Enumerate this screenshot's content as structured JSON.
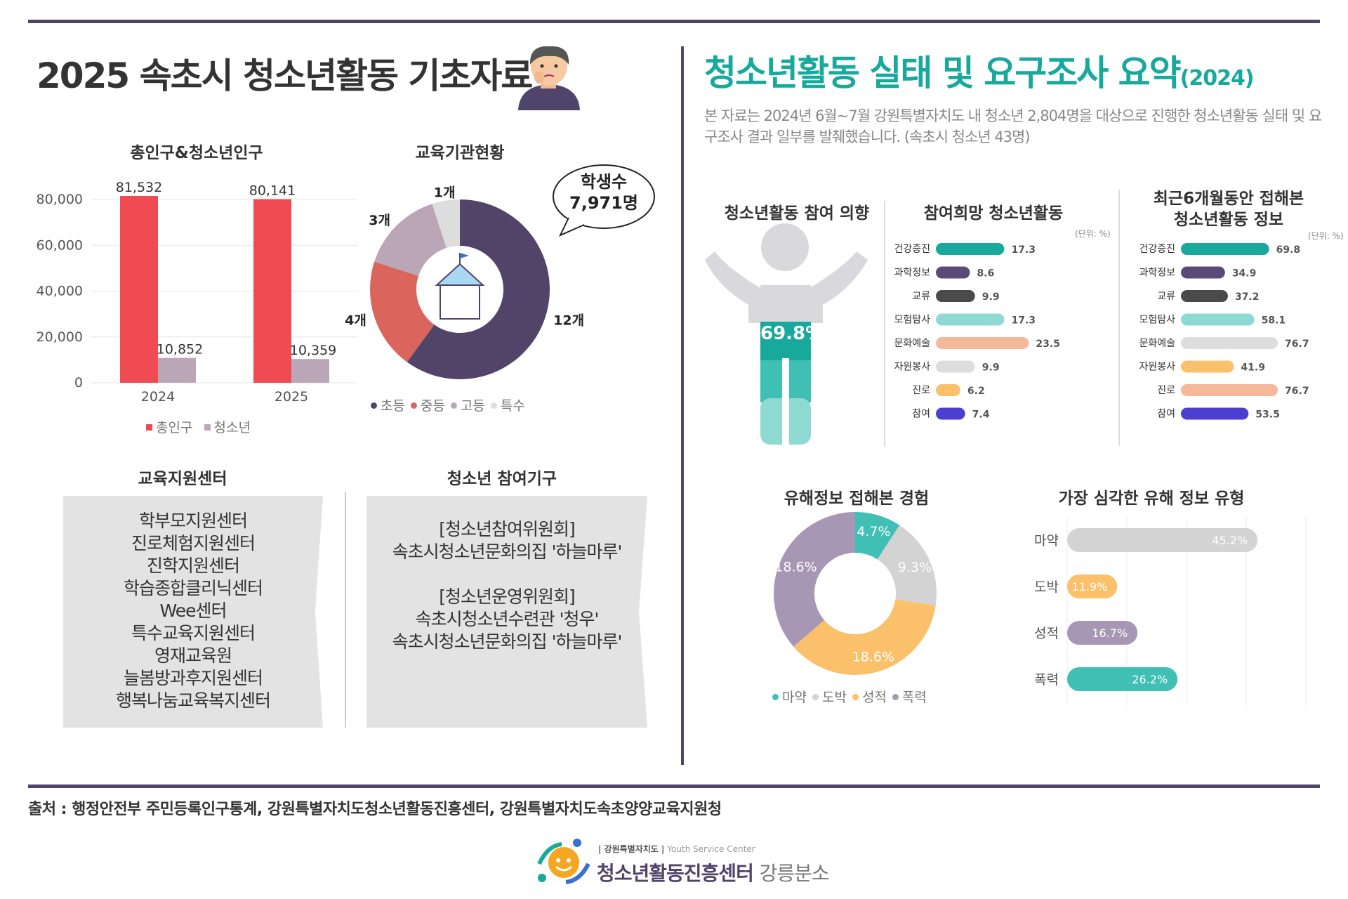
{
  "left_title": "2025 속초시 청소년활동 기초자료",
  "right_title": "청소년활동 실태 및 요구조사 요약",
  "right_title_suffix": "(2024)",
  "intro": "본 자료는 2024년 6월~7월 강원특별자치도 내 청소년 2,804명을 대상으로 진행한 청소년활동 실태 및 요구조사 결과 일부를 발췌했습니다. (속초시 청소년 43명)",
  "sections": {
    "population": "총인구&청소년인구",
    "schools": "교육기관현황",
    "support": "교육지원센터",
    "participation": "청소년 참여기구",
    "intention": "청소년활동 참여 의향",
    "desired": "참여희망 청소년활동",
    "recent_info": "최근6개월동안 접해본\n청소년활동 정보",
    "harmful_exp": "유해정보 접해본 경험",
    "harmful_type": "가장 심각한 유해 정보 유형"
  },
  "unit_label": "(단위: %)",
  "students_bubble": {
    "line1": "학생수",
    "line2": "7,971명"
  },
  "intention_value": "69.8%",
  "support_centers": [
    "학부모지원센터",
    "진로체험지원센터",
    "진학지원센터",
    "학습종합클리닉센터",
    "Wee센터",
    "특수교육지원센터",
    "영재교육원",
    "늘봄방과후지원센터",
    "행복나눔교육복지센터"
  ],
  "participation_bodies": [
    "[청소년참여위원회]",
    "속초시청소년문화의집 '하늘마루'",
    "",
    "[청소년운영위원회]",
    "속초시청소년수련관 '청우'",
    "속초시청소년문화의집 '하늘마루'"
  ],
  "source": "출처 :  행정안전부 주민등록인구통계, 강원특별자치도청소년활동진흥센터, 강원특별자치도속초양양교육지원청",
  "logo": {
    "small": "| 강원특별자치도 |",
    "small_en": "Youth Service Center",
    "name": "청소년활동진흥센터",
    "branch": "강릉분소"
  },
  "colors": {
    "accent": "#16a99c",
    "dark": "#4f4469",
    "red": "#f04a53",
    "mauve": "#bba6b8"
  },
  "chart_data": [
    {
      "type": "bar",
      "title": "총인구&청소년인구",
      "categories": [
        "2024",
        "2025"
      ],
      "series": [
        {
          "name": "총인구",
          "values": [
            81532,
            80141
          ],
          "labels": [
            "81,532",
            "80,141"
          ],
          "color": "#f04a53"
        },
        {
          "name": "청소년",
          "values": [
            10852,
            10359
          ],
          "labels": [
            "10,852",
            "10,359"
          ],
          "color": "#bba6b8"
        }
      ],
      "ylim": [
        0,
        80000
      ],
      "yticks": [
        "0",
        "20,000",
        "40,000",
        "60,000",
        "80,000"
      ],
      "legend": "bottom"
    },
    {
      "type": "pie",
      "title": "교육기관현황",
      "labels": [
        "초등",
        "중등",
        "고등",
        "특수"
      ],
      "values": [
        12,
        4,
        3,
        1
      ],
      "value_labels": [
        "12개",
        "4개",
        "3개",
        "1개"
      ],
      "colors": [
        "#524469",
        "#d9655c",
        "#bba6b8",
        "#dddddd"
      ],
      "legend": "bottom"
    },
    {
      "type": "bar",
      "title": "참여희망 청소년활동",
      "categories": [
        "건강증진",
        "과학정보",
        "교류",
        "모험탐사",
        "문화예술",
        "자원봉사",
        "진로",
        "참여"
      ],
      "values": [
        17.3,
        8.6,
        9.9,
        17.3,
        23.5,
        9.9,
        6.2,
        7.4
      ],
      "colors": [
        "#16a99c",
        "#5a4a7a",
        "#4a4a4a",
        "#8fd9d3",
        "#f6b89a",
        "#dddddd",
        "#fbc16a",
        "#4a3fd1"
      ],
      "orientation": "horizontal",
      "xlim": [
        0,
        30
      ]
    },
    {
      "type": "bar",
      "title": "최근6개월동안 접해본 청소년활동 정보",
      "categories": [
        "건강증진",
        "과학정보",
        "교류",
        "모험탐사",
        "문화예술",
        "자원봉사",
        "진로",
        "참여"
      ],
      "values": [
        69.8,
        34.9,
        37.2,
        58.1,
        76.7,
        41.9,
        76.7,
        53.5
      ],
      "colors": [
        "#16a99c",
        "#5a4a7a",
        "#4a4a4a",
        "#8fd9d3",
        "#dddddd",
        "#fbc16a",
        "#f6b89a",
        "#4a3fd1"
      ],
      "orientation": "horizontal",
      "xlim": [
        0,
        100
      ]
    },
    {
      "type": "pie",
      "title": "유해정보 접해본 경험",
      "labels": [
        "마약",
        "도박",
        "성적",
        "폭력"
      ],
      "values": [
        4.7,
        9.3,
        18.6,
        18.6
      ],
      "value_labels": [
        "4.7%",
        "9.3%",
        "18.6%",
        "18.6%"
      ],
      "colors": [
        "#40bfb5",
        "#d3d3d3",
        "#fbc16a",
        "#a797b5"
      ],
      "legend": "bottom"
    },
    {
      "type": "bar",
      "title": "가장 심각한 유해 정보 유형",
      "categories": [
        "마약",
        "도박",
        "성적",
        "폭력"
      ],
      "values": [
        45.2,
        11.9,
        16.7,
        26.2
      ],
      "value_labels": [
        "45.2%",
        "11.9%",
        "16.7%",
        "26.2%"
      ],
      "colors": [
        "#d3d3d3",
        "#fbc16a",
        "#a797b5",
        "#40bfb5"
      ],
      "orientation": "horizontal",
      "xlim": [
        0,
        50
      ]
    }
  ]
}
